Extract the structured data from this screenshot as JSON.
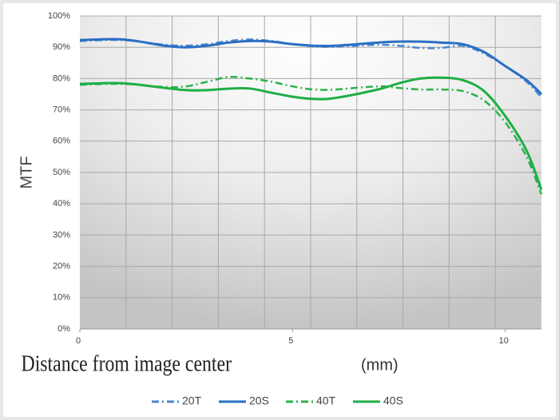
{
  "chart_data": {
    "type": "line",
    "y_label": "MTF",
    "x_label": "Distance from image center",
    "x_unit": "(mm)",
    "x": [
      0,
      1,
      2,
      2.5,
      3,
      3.5,
      4,
      4.5,
      5,
      5.5,
      6,
      7,
      7.5,
      8,
      8.5,
      9,
      9.5,
      10,
      10.5,
      10.85
    ],
    "series": [
      {
        "name": "20T",
        "color": "#4a86d0",
        "style": "dashdot",
        "values": [
          92,
          92.3,
          90.8,
          90.5,
          91,
          92,
          92.5,
          92,
          91,
          90.3,
          90.2,
          90.8,
          90.5,
          89.8,
          89.8,
          90.5,
          88,
          84,
          79,
          74
        ]
      },
      {
        "name": "20S",
        "color": "#2a6fc4",
        "style": "solid",
        "values": [
          92.3,
          92.5,
          90.5,
          90,
          90.5,
          91.5,
          92,
          91.8,
          91,
          90.5,
          90.5,
          91.5,
          91.8,
          91.8,
          91.5,
          91,
          88.5,
          84,
          79.5,
          75
        ]
      },
      {
        "name": "40T",
        "color": "#2bb24c",
        "style": "dashdot",
        "values": [
          78,
          78.3,
          77.3,
          77.5,
          79,
          80.5,
          80,
          79,
          77.5,
          76.5,
          76.5,
          77.5,
          77,
          76.5,
          76.5,
          76,
          73,
          66,
          55,
          43
        ]
      },
      {
        "name": "40S",
        "color": "#1fae45",
        "style": "solid",
        "values": [
          78.3,
          78.5,
          77,
          76.3,
          76.3,
          76.8,
          76.8,
          75.5,
          74.2,
          73.5,
          73.8,
          76.5,
          78.5,
          80,
          80.3,
          79.5,
          76,
          68,
          57,
          44.5
        ]
      }
    ],
    "xlim": [
      0,
      10.85
    ],
    "xticks": [
      0,
      5,
      10
    ],
    "ylim": [
      0,
      100
    ],
    "yticks": [
      {
        "value": 0,
        "label": "0%"
      },
      {
        "value": 10,
        "label": "10%"
      },
      {
        "value": 20,
        "label": "20%"
      },
      {
        "value": 30,
        "label": "30%"
      },
      {
        "value": 40,
        "label": "40%"
      },
      {
        "value": 50,
        "label": "50%"
      },
      {
        "value": 60,
        "label": "60%"
      },
      {
        "value": 70,
        "label": "70%"
      },
      {
        "value": 80,
        "label": "80%"
      },
      {
        "value": 90,
        "label": "90%"
      },
      {
        "value": 100,
        "label": "100%"
      }
    ],
    "grid": true,
    "legend": "bottom"
  }
}
